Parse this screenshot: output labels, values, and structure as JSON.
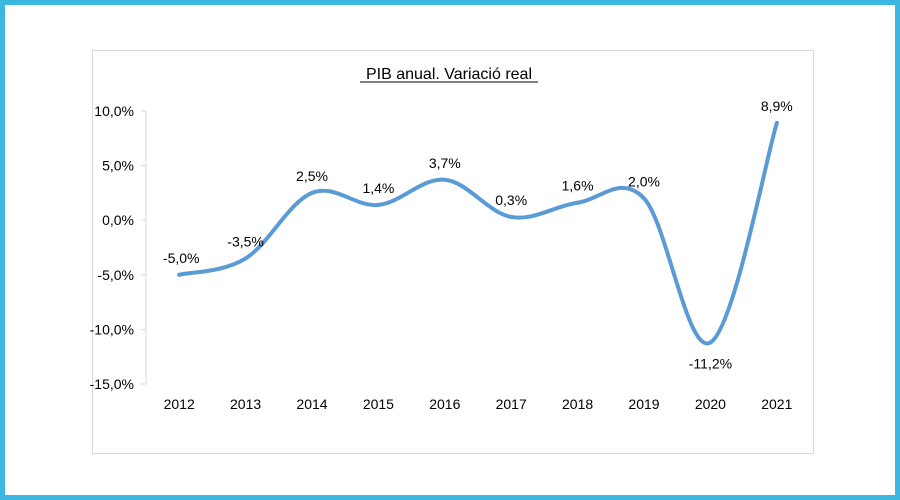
{
  "chart_data": {
    "type": "line",
    "title": "PIB anual. Variació real",
    "xlabel": "",
    "ylabel": "",
    "ylim": [
      -15,
      10
    ],
    "grid": false,
    "categories": [
      "2012",
      "2013",
      "2014",
      "2015",
      "2016",
      "2017",
      "2018",
      "2019",
      "2020",
      "2021"
    ],
    "values": [
      -5.0,
      -3.5,
      2.5,
      1.4,
      3.7,
      0.3,
      1.6,
      2.0,
      -11.2,
      8.9
    ],
    "data_labels": [
      "-5,0%",
      "-3,5%",
      "2,5%",
      "1,4%",
      "3,7%",
      "0,3%",
      "1,6%",
      "2,0%",
      "-11,2%",
      "8,9%"
    ],
    "y_ticks": [
      10,
      5,
      0,
      -5,
      -10,
      -15
    ],
    "y_tick_labels": [
      "10,0%",
      "5,0%",
      "0,0%",
      "-5,0%",
      "-10,0%",
      "-15,0%"
    ],
    "line_color": "#5b9bd5"
  }
}
